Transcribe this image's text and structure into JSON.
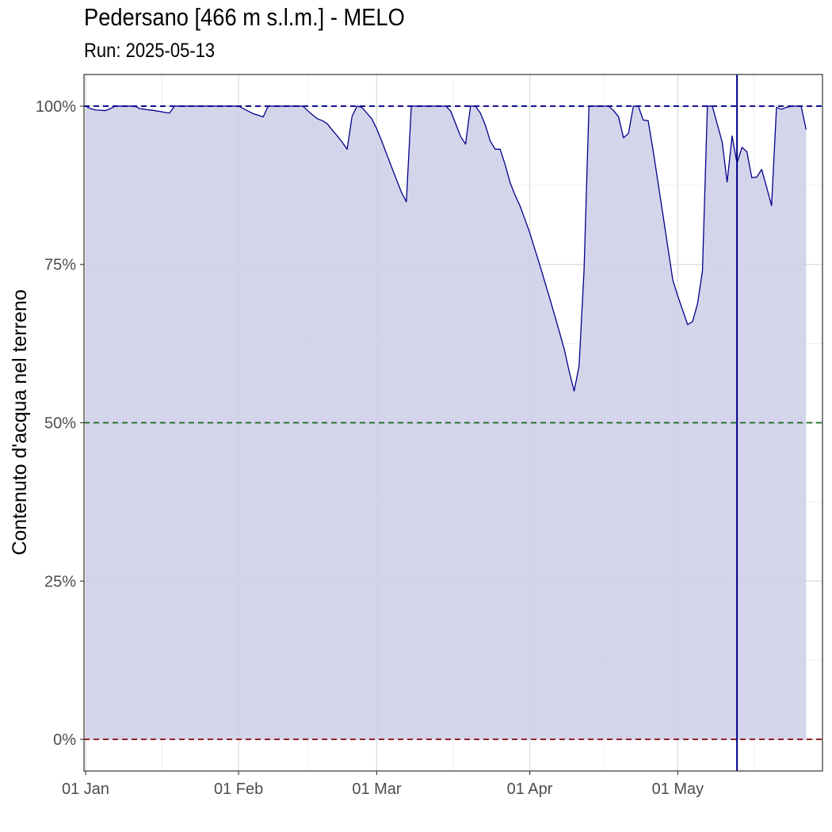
{
  "chart_data": {
    "type": "area",
    "title": "Pedersano [466 m s.l.m.] - MELO",
    "subtitle": "Run: 2025-05-13",
    "xlabel": "",
    "ylabel": "Contenuto d'acqua nel terreno",
    "x_axis_type": "date",
    "xlim": [
      "2025-01-01",
      "2025-05-30"
    ],
    "ylim": [
      -5,
      105
    ],
    "x_ticks": [
      "2025-01-01",
      "2025-02-01",
      "2025-03-01",
      "2025-04-01",
      "2025-05-01"
    ],
    "x_tick_labels": [
      "01 Jan",
      "01 Feb",
      "01 Mar",
      "01 Apr",
      "01 May"
    ],
    "y_ticks": [
      0,
      25,
      50,
      75,
      100
    ],
    "y_tick_labels": [
      "0%",
      "25%",
      "50%",
      "75%",
      "100%"
    ],
    "grid": true,
    "series": [
      {
        "color": "#00008b",
        "fill_color": "#cccce8",
        "points": [
          [
            "2025-01-01",
            100
          ],
          [
            "2025-01-02",
            99.6
          ],
          [
            "2025-01-03",
            99.4
          ],
          [
            "2025-01-05",
            99.3
          ],
          [
            "2025-01-06",
            99.6
          ],
          [
            "2025-01-07",
            100
          ],
          [
            "2025-01-11",
            100
          ],
          [
            "2025-01-12",
            99.6
          ],
          [
            "2025-01-15",
            99.3
          ],
          [
            "2025-01-18",
            98.9
          ],
          [
            "2025-01-19",
            100
          ],
          [
            "2025-01-26",
            100
          ],
          [
            "2025-02-01",
            100
          ],
          [
            "2025-02-02",
            99.6
          ],
          [
            "2025-02-04",
            98.8
          ],
          [
            "2025-02-06",
            98.3
          ],
          [
            "2025-02-07",
            100
          ],
          [
            "2025-02-14",
            100
          ],
          [
            "2025-02-15",
            99.3
          ],
          [
            "2025-02-16",
            98.6
          ],
          [
            "2025-02-17",
            98.0
          ],
          [
            "2025-02-18",
            97.7
          ],
          [
            "2025-02-19",
            97.2
          ],
          [
            "2025-02-20",
            96.2
          ],
          [
            "2025-02-21",
            95.3
          ],
          [
            "2025-02-22",
            94.3
          ],
          [
            "2025-02-23",
            93.2
          ],
          [
            "2025-02-24",
            98.4
          ],
          [
            "2025-02-25",
            100
          ],
          [
            "2025-02-26",
            99.8
          ],
          [
            "2025-02-27",
            98.9
          ],
          [
            "2025-02-28",
            98.0
          ],
          [
            "2025-03-01",
            96.4
          ],
          [
            "2025-03-02",
            94.5
          ],
          [
            "2025-03-04",
            90.4
          ],
          [
            "2025-03-06",
            86.4
          ],
          [
            "2025-03-07",
            84.9
          ],
          [
            "2025-03-08",
            100
          ],
          [
            "2025-03-15",
            100
          ],
          [
            "2025-03-16",
            99.2
          ],
          [
            "2025-03-17",
            97.2
          ],
          [
            "2025-03-18",
            95.2
          ],
          [
            "2025-03-19",
            94.0
          ],
          [
            "2025-03-20",
            100
          ],
          [
            "2025-03-21",
            100
          ],
          [
            "2025-03-22",
            98.9
          ],
          [
            "2025-03-23",
            97.0
          ],
          [
            "2025-03-24",
            94.5
          ],
          [
            "2025-03-25",
            93.2
          ],
          [
            "2025-03-26",
            93.2
          ],
          [
            "2025-03-27",
            90.8
          ],
          [
            "2025-03-28",
            88.0
          ],
          [
            "2025-03-29",
            86.0
          ],
          [
            "2025-03-30",
            84.3
          ],
          [
            "2025-03-31",
            82.2
          ],
          [
            "2025-04-01",
            80.0
          ],
          [
            "2025-04-03",
            75.0
          ],
          [
            "2025-04-05",
            69.8
          ],
          [
            "2025-04-07",
            64.4
          ],
          [
            "2025-04-08",
            61.6
          ],
          [
            "2025-04-09",
            58.1
          ],
          [
            "2025-04-10",
            55.0
          ],
          [
            "2025-04-11",
            59.0
          ],
          [
            "2025-04-12",
            74.0
          ],
          [
            "2025-04-13",
            100
          ],
          [
            "2025-04-17",
            100
          ],
          [
            "2025-04-18",
            99.3
          ],
          [
            "2025-04-19",
            98.3
          ],
          [
            "2025-04-20",
            95.0
          ],
          [
            "2025-04-21",
            95.7
          ],
          [
            "2025-04-22",
            100
          ],
          [
            "2025-04-23",
            100
          ],
          [
            "2025-04-24",
            97.8
          ],
          [
            "2025-04-25",
            97.7
          ],
          [
            "2025-04-26",
            93.0
          ],
          [
            "2025-04-28",
            82.8
          ],
          [
            "2025-04-30",
            72.5
          ],
          [
            "2025-05-01",
            70.0
          ],
          [
            "2025-05-03",
            65.5
          ],
          [
            "2025-05-04",
            66.0
          ],
          [
            "2025-05-05",
            68.8
          ],
          [
            "2025-05-06",
            74.0
          ],
          [
            "2025-05-07",
            100
          ],
          [
            "2025-05-08",
            100
          ],
          [
            "2025-05-10",
            94.3
          ],
          [
            "2025-05-11",
            88.0
          ],
          [
            "2025-05-12",
            95.3
          ],
          [
            "2025-05-13",
            91.0
          ],
          [
            "2025-05-14",
            93.5
          ],
          [
            "2025-05-15",
            92.8
          ],
          [
            "2025-05-16",
            88.7
          ],
          [
            "2025-05-17",
            88.8
          ],
          [
            "2025-05-18",
            90.0
          ],
          [
            "2025-05-19",
            87.2
          ],
          [
            "2025-05-20",
            84.3
          ],
          [
            "2025-05-21",
            99.8
          ],
          [
            "2025-05-22",
            99.5
          ],
          [
            "2025-05-23",
            99.8
          ],
          [
            "2025-05-24",
            100
          ],
          [
            "2025-05-26",
            100
          ],
          [
            "2025-05-27",
            96.3
          ]
        ]
      }
    ],
    "reference_lines": [
      {
        "axis": "y",
        "value": 100,
        "style": "dashed",
        "color": "#00008b"
      },
      {
        "axis": "y",
        "value": 50,
        "style": "dashed",
        "color": "#1a661a"
      },
      {
        "axis": "y",
        "value": 0,
        "style": "dashed",
        "color": "#8b1a1a"
      },
      {
        "axis": "x",
        "value": "2025-05-13",
        "style": "solid",
        "color": "#00008b"
      }
    ]
  }
}
